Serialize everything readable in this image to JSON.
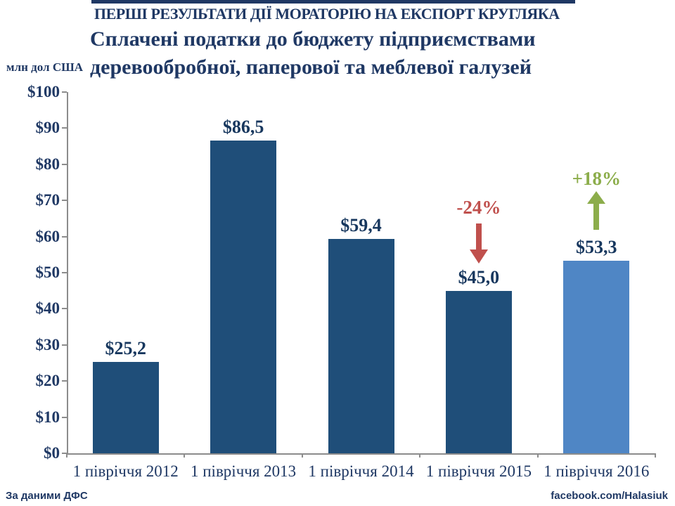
{
  "header": {
    "kicker": "ПЕРШІ РЕЗУЛЬТАТИ ДІЇ МОРАТОРІЮ НА ЕКСПОРТ КРУГЛЯКА",
    "title_line1": "Сплачені податки до бюджету підприємствами",
    "title_line2": "деревообробної, паперової та меблевої галузей"
  },
  "chart_data": {
    "type": "bar",
    "title": "Сплачені податки до бюджету підприємствами деревообробної, паперової та меблевої галузей",
    "unit_label": "млн дол США",
    "categories": [
      "1 півріччя 2012",
      "1 півріччя 2013",
      "1 півріччя 2014",
      "1 півріччя 2015",
      "1 півріччя 2016"
    ],
    "values": [
      25.2,
      86.5,
      59.4,
      45.0,
      53.3
    ],
    "bar_labels": [
      "$25,2",
      "$86,5",
      "$59,4",
      "$45,0",
      "$53,3"
    ],
    "bar_colors": [
      "#1F4E79",
      "#1F4E79",
      "#1F4E79",
      "#1F4E79",
      "#4F86C5"
    ],
    "ylim": [
      0,
      100
    ],
    "ytick_step": 10,
    "ytick_labels": [
      "$0",
      "$10",
      "$20",
      "$30",
      "$40",
      "$50",
      "$60",
      "$70",
      "$80",
      "$90",
      "$100"
    ],
    "grid": false,
    "legend": null,
    "annotations": [
      {
        "category": "1 півріччя 2015",
        "text": "-24%",
        "color": "#C0504D",
        "arrow": "down"
      },
      {
        "category": "1 півріччя 2016",
        "text": "+18%",
        "color": "#8CAD4B",
        "arrow": "up"
      }
    ]
  },
  "footer": {
    "source": "За даними ДФС",
    "credit": "facebook.com/Halasiuk"
  },
  "colors": {
    "heading": "#1F3864",
    "bar_primary": "#1F4E79",
    "bar_highlight": "#4F86C5",
    "negative": "#C0504D",
    "positive": "#8CAD4B",
    "axis_line": "#8C8C8C"
  }
}
